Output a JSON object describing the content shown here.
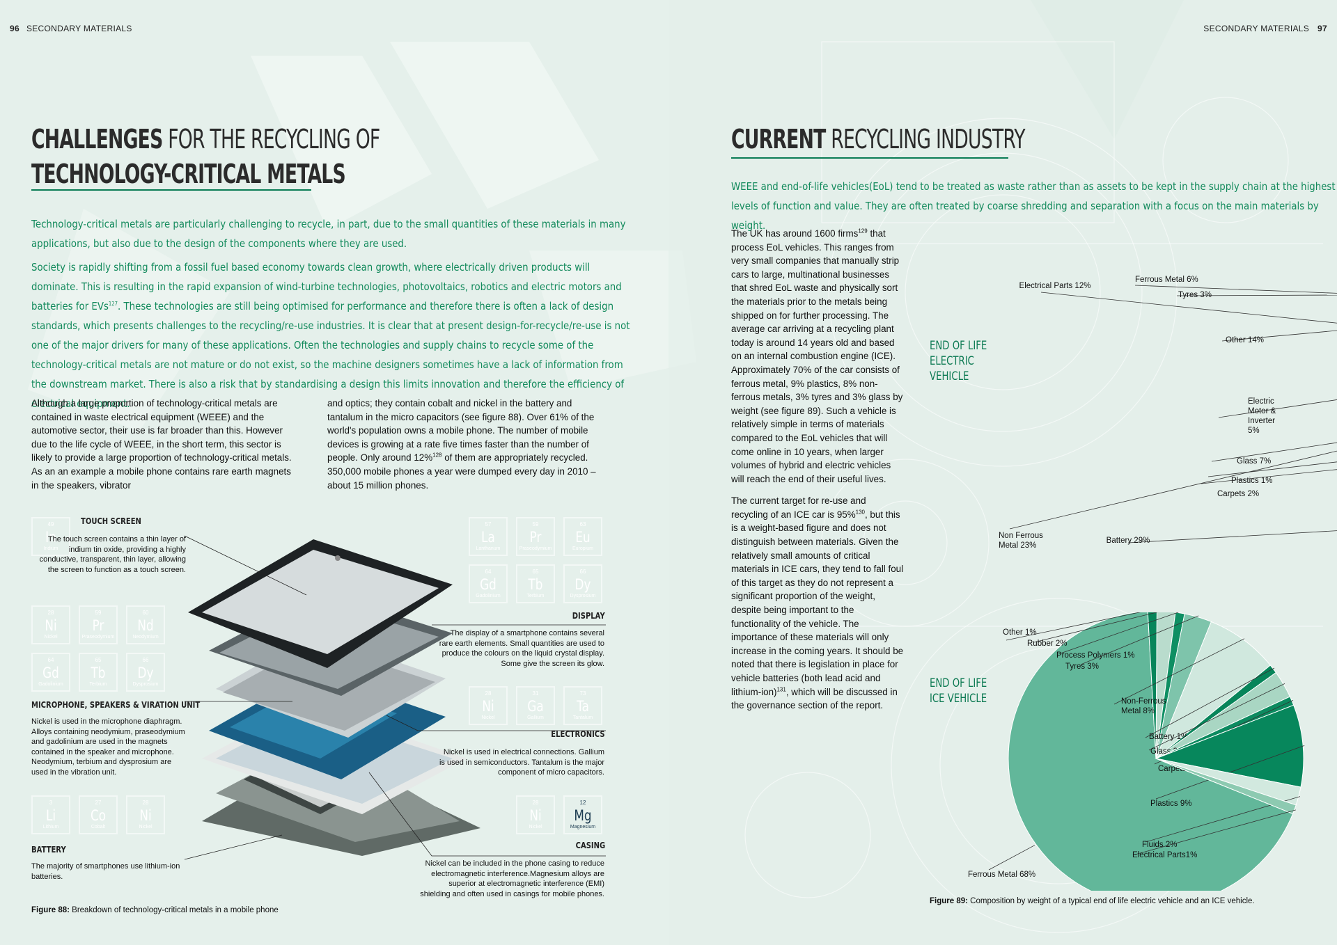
{
  "left_page": {
    "page_number": "96",
    "section": "SECONDARY MATERIALS",
    "title_bold_1": "CHALLENGES",
    "title_light_1": " FOR THE RECYCLING OF",
    "title_bold_2": "TECHNOLOGY-CRITICAL METALS",
    "lead_1": "Technology-critical metals are particularly challenging to recycle, in part, due to the small quantities of these materials in many applications, but also due to the design of the components where they are used.",
    "lead_2a": "Society is rapidly shifting from a fossil fuel based economy towards clean growth, where electrically driven products will dominate. This is resulting in the rapid expansion of wind-turbine technologies, photovoltaics, robotics and electric motors and batteries for EVs",
    "lead_2_ref": "127",
    "lead_2b": ". These technologies are still being optimised for performance and therefore there is often a lack of design standards, which presents challenges to the recycling/re-use industries. It is clear that at present design-for-recycle/re-use is not one of the major drivers for many of these applications. Often the technologies and supply chains to recycle some of the technology-critical metals are not mature or do not exist, so the machine designers sometimes have a lack of information from the downstream market. There is also a risk that by standardising a design this limits innovation and therefore the efficiency of electrical equipment.",
    "col1": "Although a large proportion of technology-critical metals are contained in waste electrical equipment (WEEE) and the automotive sector, their use is far broader than this. However due to the life cycle of WEEE, in the short term, this sector is likely to provide a large proportion of technology-critical metals. As an an example a mobile phone contains rare earth magnets in the speakers, vibrator",
    "col2a": "and optics; they contain cobalt and nickel in the battery and tantalum in the micro capacitors (see figure 88). Over 61% of the world's population owns a mobile phone. The number of mobile devices is growing at a rate five times faster than the number of people. Only around 12%",
    "col2_ref": "128",
    "col2b": " of them are appropriately recycled. 350,000 mobile phones a year were dumped every day in 2010 – about 15 million phones.",
    "figure": {
      "caption_bold": "Figure 88:",
      "caption_text": " Breakdown of technology-critical metals in a mobile phone",
      "touch_screen": {
        "title": "TOUCH SCREEN",
        "text": "The touch screen contains a thin layer of indium tin oxide, providing a highly conductive, transparent, thin layer, allowing the screen to function as a touch screen."
      },
      "microphone": {
        "title": "MICROPHONE, SPEAKERS & VIRATION UNIT",
        "text": "Nickel is used in the microphone diaphragm. Alloys containing neodymium, praseodymium and gadolinium are used in the magnets contained in the speaker and microphone. Neodymium, terbium and dysprosium are used in the vibration unit."
      },
      "battery": {
        "title": "BATTERY",
        "text": "The majority of smartphones use lithium-ion batteries."
      },
      "display": {
        "title": "DISPLAY",
        "text": "The display of a smartphone contains several rare earth elements. Small quantities are used to produce the colours on the liquid crystal display. Some give the screen its glow."
      },
      "electronics": {
        "title": "ELECTRONICS",
        "text": "Nickel is used in electrical connections. Gallium is used in semiconductors. Tantalum is the major component of micro capacitors."
      },
      "casing": {
        "title": "CASING",
        "text": "Nickel can be included in the phone casing to reduce electromagnetic interference.Magnesium alloys are superior at electromagnetic interference (EMI) shielding and often used in casings for mobile phones."
      },
      "elements": {
        "in": {
          "num": "49",
          "sym": "In",
          "name": "Indium",
          "color": "#8498a6"
        },
        "ni": {
          "num": "28",
          "sym": "Ni",
          "name": "Nickel",
          "color": "#ee7d1e"
        },
        "pr": {
          "num": "59",
          "sym": "Pr",
          "name": "Praseodymium",
          "color": "#5d93b8"
        },
        "nd": {
          "num": "60",
          "sym": "Nd",
          "name": "Neodymium",
          "color": "#b2a65c"
        },
        "gd": {
          "num": "64",
          "sym": "Gd",
          "name": "Gadolinium",
          "color": "#777c40"
        },
        "tb": {
          "num": "65",
          "sym": "Tb",
          "name": "Terbium",
          "color": "#d48a68"
        },
        "dy": {
          "num": "66",
          "sym": "Dy",
          "name": "Dysprosium",
          "color": "#8c74a6"
        },
        "li": {
          "num": "3",
          "sym": "Li",
          "name": "Lithium",
          "color": "#1c7cc2"
        },
        "co": {
          "num": "27",
          "sym": "Co",
          "name": "Cobalt",
          "color": "#1e4a8a"
        },
        "la": {
          "num": "57",
          "sym": "La",
          "name": "Lanthanum",
          "color": "#a37f6a"
        },
        "eu": {
          "num": "63",
          "sym": "Eu",
          "name": "Europium",
          "color": "#19a9b5"
        },
        "ga": {
          "num": "31",
          "sym": "Ga",
          "name": "Gallium",
          "color": "#cc4f58"
        },
        "ta": {
          "num": "73",
          "sym": "Ta",
          "name": "Tantalum",
          "color": "#1f94a5"
        },
        "mg": {
          "num": "12",
          "sym": "Mg",
          "name": "Magnesium",
          "color": "#b7d6e8"
        }
      }
    }
  },
  "right_page": {
    "page_number": "97",
    "section": "SECONDARY MATERIALS",
    "title_bold": "CURRENT",
    "title_light": " RECYCLING INDUSTRY",
    "lead": "WEEE and end-of-life vehicles(EoL) tend to be treated as waste rather than as assets to be kept in the supply chain at the highest levels of function and value. They are often treated by coarse shredding and separation with a focus on the main materials by weight.",
    "p1a": "The UK has around 1600 firms",
    "p1_ref": "129",
    "p1b": " that process EoL vehicles. This ranges from very small companies that manually strip cars to large, multinational businesses that shred EoL waste and physically sort the materials prior to the metals being shipped on for further processing. The average car arriving at a recycling plant today is around 14 years old and based on an internal combustion engine (ICE). Approximately 70% of the car consists of ferrous metal, 9% plastics, 8% non-ferrous metals, 3% tyres and 3% glass by weight (see figure 89). Such a vehicle is relatively simple in terms of materials compared to the EoL vehicles that will come online in 10 years, when larger volumes of hybrid and electric vehicles will reach the end of their useful lives.",
    "p2a": "The current target for re-use and recycling of an ICE car is 95%",
    "p2_ref": "130",
    "p2b": ", but this is a weight-based figure and does not distinguish between materials. Given the relatively small amounts of critical materials in ICE cars, they tend to fall foul of this target as they do not represent a significant proportion of the weight, despite being important to the functionality of the vehicle. The importance of these materials will only increase in the coming years. It should be noted that there is legislation in place for vehicle batteries (both lead acid and lithium-ion)",
    "p2_ref2": "131",
    "p2c": ", which will be discussed in the governance section of the report.",
    "ev_label": [
      "END OF LIFE",
      "ELECTRIC",
      "VEHICLE"
    ],
    "ice_label": [
      "END OF LIFE",
      "ICE VEHICLE"
    ],
    "caption_bold": "Figure 89:",
    "caption_text": " Composition by  weight of a typical end of life electric vehicle and an ICE vehicle."
  },
  "chart_data": [
    {
      "type": "pie",
      "title": "END OF LIFE ELECTRIC VEHICLE",
      "slices": [
        {
          "label": "Battery 29%",
          "value": 29,
          "color": "#05855a"
        },
        {
          "label": "Non Ferrous Metal 23%",
          "value": 23,
          "color": "#cfe7dd"
        },
        {
          "label": "Electrical Parts 12%",
          "value": 12,
          "color": "#9ccdb9"
        },
        {
          "label": "Ferrous Metal 6%",
          "value": 6,
          "color": "#119c73"
        },
        {
          "label": "Tyres 3%",
          "value": 3,
          "color": "#d5ebe2"
        },
        {
          "label": "Other 14%",
          "value": 14,
          "color": "#07855a"
        },
        {
          "label": "Electric Motor & Inverter 5%",
          "value": 5,
          "color": "#5fb79a"
        },
        {
          "label": "Glass 7%",
          "value": 7,
          "color": "#cde6db"
        },
        {
          "label": "Plastics 1%",
          "value": 1,
          "color": "#077e57"
        },
        {
          "label": "Carpets 2%",
          "value": 2,
          "color": "#8ccab2"
        }
      ]
    },
    {
      "type": "pie",
      "title": "END OF LIFE ICE VEHICLE",
      "slices": [
        {
          "label": "Ferrous Metal 68%",
          "value": 68,
          "color": "#62b79a"
        },
        {
          "label": "Other 1%",
          "value": 1,
          "color": "#07855a"
        },
        {
          "label": "Rubber 2%",
          "value": 2,
          "color": "#b9dccd"
        },
        {
          "label": "Process Polymers 1%",
          "value": 1,
          "color": "#0e8f63"
        },
        {
          "label": "Tyres 3%",
          "value": 3,
          "color": "#7ec4ab"
        },
        {
          "label": "Non-Ferrous Metal 8%",
          "value": 8,
          "color": "#d0e8de"
        },
        {
          "label": "Battery 1%",
          "value": 1,
          "color": "#07855a"
        },
        {
          "label": "Glass 3%",
          "value": 3,
          "color": "#a9d6c3"
        },
        {
          "label": "Carpets 1%",
          "value": 1,
          "color": "#0c8a5f"
        },
        {
          "label": "Plastics 9%",
          "value": 9,
          "color": "#07875c"
        },
        {
          "label": "Fluids 2%",
          "value": 2,
          "color": "#d2e9df"
        },
        {
          "label": "Electrical Parts1%",
          "value": 1,
          "color": "#8dcab1"
        }
      ]
    }
  ]
}
